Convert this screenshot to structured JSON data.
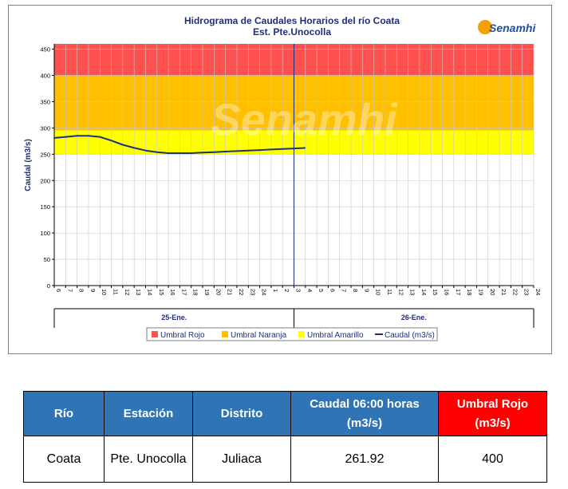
{
  "chart_data": {
    "type": "line",
    "title": "Hidrograma de Caudales Horarios del río Coata",
    "subtitle": "Est. Pte.Unocolla",
    "ylabel": "Caudal  (m3/s)",
    "ylim": [
      0,
      460
    ],
    "yticks": [
      "0",
      "50",
      "100",
      "150",
      "200",
      "250",
      "300",
      "350",
      "400",
      "450"
    ],
    "xticks": [
      "6",
      "7",
      "8",
      "9",
      "10",
      "11",
      "12",
      "13",
      "14",
      "15",
      "16",
      "17",
      "18",
      "19",
      "20",
      "21",
      "22",
      "23",
      "24",
      "1",
      "2",
      "3",
      "4",
      "5",
      "6",
      "7",
      "8",
      "9",
      "10",
      "11",
      "12",
      "13",
      "14",
      "15",
      "16",
      "17",
      "18",
      "19",
      "20",
      "21",
      "22",
      "23",
      "24"
    ],
    "days": [
      "25-Ene.",
      "26-Ene."
    ],
    "day_divider_after_tick": "3",
    "bands": [
      {
        "name": "Umbral Rojo",
        "from": 400,
        "to": 460,
        "color": "#ff5050"
      },
      {
        "name": "Umbral Naranja",
        "from": 295,
        "to": 400,
        "color": "#ffc000"
      },
      {
        "name": "Umbral Amarillo",
        "from": 250,
        "to": 295,
        "color": "#ffff00"
      }
    ],
    "series": [
      {
        "name": "Caudal (m3/s)",
        "color": "#1f2f7a",
        "values": [
          281,
          283,
          285,
          285,
          283,
          276,
          268,
          262,
          257,
          254,
          252,
          252,
          252,
          253,
          254,
          255,
          256,
          257,
          258,
          259,
          260,
          261,
          262
        ]
      }
    ],
    "grid": true,
    "legend_position": "bottom",
    "legend": [
      "Umbral Rojo",
      "Umbral Naranja",
      "Umbral Amarillo",
      "Caudal (m3/s)"
    ]
  },
  "watermark": "Senamhi",
  "logo": "Senamhi",
  "table": {
    "headers": [
      "Río",
      "Estación",
      "Distrito",
      "Caudal  06:00 horas (m3/s)",
      "Umbral Rojo (m3/s)"
    ],
    "row": [
      "Coata",
      "Pte. Unocolla",
      "Juliaca",
      "261.92",
      "400"
    ]
  },
  "colors": {
    "header_blue": "#2f75b5",
    "header_red": "#ff0000",
    "line": "#1f2f7a"
  }
}
